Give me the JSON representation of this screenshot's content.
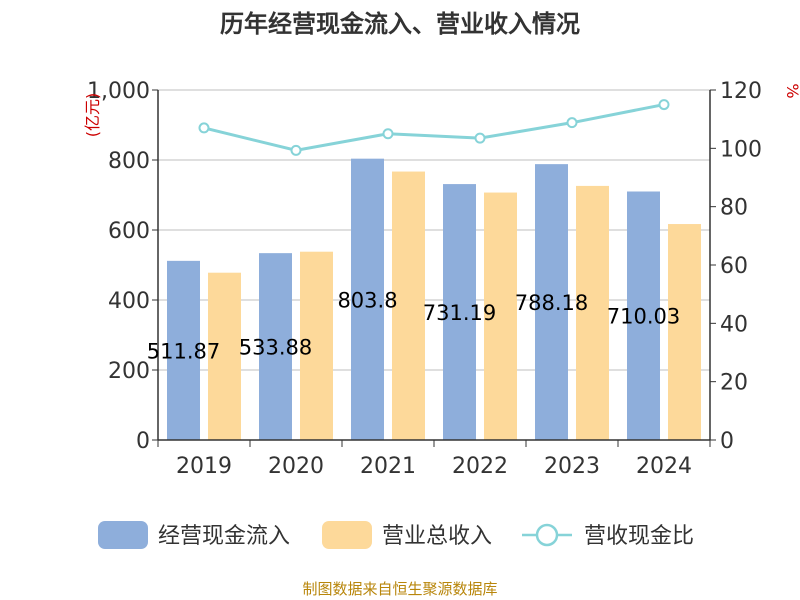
{
  "title": "历年经营现金流入、营业收入情况",
  "source": "制图数据来自恒生聚源数据库",
  "colors": {
    "cash_inflow": "#8eaedb",
    "revenue": "#fdd99a",
    "ratio": "#86d3d8",
    "grid": "#bfbfbf",
    "axis": "#333333",
    "unit": "#cc0000"
  },
  "chart_data": {
    "type": "bar",
    "title": "历年经营现金流入、营业收入情况",
    "categories": [
      "2019",
      "2020",
      "2021",
      "2022",
      "2023",
      "2024"
    ],
    "y_left": {
      "unit": "(亿元)",
      "ylim": [
        0,
        1000
      ],
      "ticks": [
        "0",
        "200",
        "400",
        "600",
        "800",
        "1,000"
      ]
    },
    "y_right": {
      "unit": "%",
      "ylim": [
        0,
        120
      ],
      "ticks": [
        "0",
        "20",
        "40",
        "60",
        "80",
        "100",
        "120"
      ]
    },
    "grid": true,
    "legend_position": "bottom",
    "series": [
      {
        "name": "经营现金流入",
        "type": "bar",
        "axis": "left",
        "values": [
          511.87,
          533.88,
          803.8,
          731.19,
          788.18,
          710.03
        ],
        "labels": [
          "511.87",
          "533.88",
          "803.8",
          "731.19",
          "788.18",
          "710.03"
        ]
      },
      {
        "name": "营业总收入",
        "type": "bar",
        "axis": "left",
        "values": [
          478,
          538,
          767,
          707,
          726,
          617
        ]
      },
      {
        "name": "营收现金比",
        "type": "line",
        "axis": "right",
        "values": [
          107,
          99.3,
          105,
          103.5,
          108.8,
          115
        ]
      }
    ]
  }
}
